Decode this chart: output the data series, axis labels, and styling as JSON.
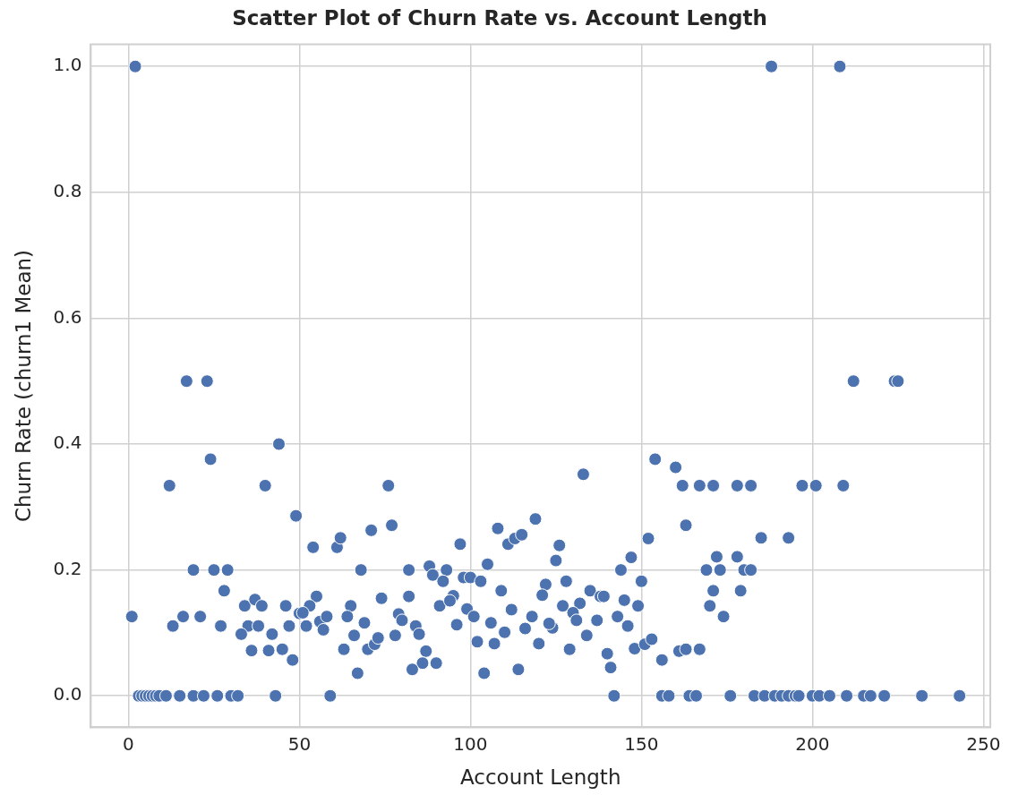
{
  "chart_data": {
    "type": "scatter",
    "title": "Scatter Plot of Churn Rate vs. Account Length",
    "xlabel": "Account Length",
    "ylabel": "Churn Rate (churn1 Mean)",
    "xlim": [
      -11,
      252
    ],
    "ylim": [
      -0.05,
      1.035
    ],
    "xticks": [
      0,
      50,
      100,
      150,
      200,
      250
    ],
    "yticks": [
      {
        "value": 0,
        "label": "0.0"
      },
      {
        "value": 0.2,
        "label": "0.2"
      },
      {
        "value": 0.4,
        "label": "0.4"
      },
      {
        "value": 0.6,
        "label": "0.6"
      },
      {
        "value": 0.8,
        "label": "0.8"
      },
      {
        "value": 1,
        "label": "1.0"
      }
    ],
    "grid": true,
    "legend": false,
    "marker": "circle",
    "series": [
      {
        "color": "#4c72b0",
        "x": [
          2,
          188,
          208,
          17,
          23,
          44,
          24,
          12,
          40,
          49,
          54,
          61,
          62,
          71,
          19,
          25,
          29,
          68,
          28,
          34,
          37,
          39,
          46,
          55,
          53,
          65,
          1,
          16,
          21,
          13,
          27,
          35,
          38,
          33,
          42,
          47,
          50,
          51,
          52,
          56,
          58,
          57,
          64,
          69,
          66,
          63,
          70,
          72,
          67,
          36,
          41,
          45,
          48,
          3,
          4,
          5,
          6,
          7,
          8,
          9,
          11,
          15,
          19,
          22,
          26,
          30,
          32,
          43,
          59,
          76,
          77,
          97,
          82,
          88,
          89,
          93,
          92,
          98,
          100,
          103,
          105,
          108,
          111,
          113,
          115,
          119,
          133,
          126,
          125,
          122,
          121,
          128,
          109,
          135,
          138,
          139,
          132,
          127,
          130,
          131,
          137,
          134,
          140,
          141,
          142,
          129,
          120,
          147,
          152,
          154,
          150,
          144,
          145,
          149,
          143,
          146,
          148,
          151,
          153,
          74,
          82,
          91,
          95,
          94,
          99,
          101,
          112,
          106,
          96,
          110,
          118,
          116,
          124,
          123,
          79,
          80,
          84,
          85,
          78,
          73,
          87,
          86,
          90,
          83,
          102,
          107,
          104,
          114,
          160,
          162,
          167,
          171,
          178,
          182,
          197,
          201,
          209,
          163,
          185,
          193,
          172,
          178,
          169,
          173,
          180,
          182,
          171,
          179,
          170,
          174,
          156,
          161,
          163,
          167,
          212,
          224,
          225,
          156,
          158,
          164,
          166,
          176,
          183,
          186,
          189,
          191,
          193,
          195,
          196,
          200,
          202,
          205,
          210,
          215,
          217,
          221,
          232,
          243
        ],
        "values": [
          1,
          1,
          1,
          0.5,
          0.5,
          0.4,
          0.376,
          0.334,
          0.334,
          0.286,
          0.236,
          0.236,
          0.251,
          0.263,
          0.2,
          0.2,
          0.2,
          0.2,
          0.167,
          0.143,
          0.153,
          0.143,
          0.143,
          0.158,
          0.143,
          0.143,
          0.126,
          0.126,
          0.126,
          0.111,
          0.111,
          0.111,
          0.111,
          0.098,
          0.098,
          0.111,
          0.131,
          0.132,
          0.111,
          0.118,
          0.126,
          0.105,
          0.126,
          0.116,
          0.096,
          0.074,
          0.074,
          0.082,
          0.036,
          0.072,
          0.072,
          0.074,
          0.057,
          0,
          0,
          0,
          0,
          0,
          0,
          0,
          0,
          0,
          0,
          0,
          0,
          0,
          0,
          0,
          0,
          0.334,
          0.271,
          0.241,
          0.2,
          0.206,
          0.192,
          0.2,
          0.182,
          0.188,
          0.188,
          0.182,
          0.209,
          0.266,
          0.241,
          0.25,
          0.256,
          0.281,
          0.352,
          0.239,
          0.215,
          0.177,
          0.16,
          0.182,
          0.167,
          0.167,
          0.158,
          0.158,
          0.147,
          0.143,
          0.132,
          0.12,
          0.12,
          0.096,
          0.067,
          0.045,
          0,
          0.074,
          0.083,
          0.22,
          0.25,
          0.376,
          0.182,
          0.2,
          0.152,
          0.143,
          0.126,
          0.111,
          0.075,
          0.082,
          0.09,
          0.155,
          0.158,
          0.143,
          0.159,
          0.151,
          0.138,
          0.126,
          0.137,
          0.116,
          0.113,
          0.101,
          0.126,
          0.107,
          0.108,
          0.115,
          0.13,
          0.12,
          0.111,
          0.098,
          0.096,
          0.092,
          0.071,
          0.052,
          0.052,
          0.042,
          0.086,
          0.083,
          0.036,
          0.042,
          0.363,
          0.334,
          0.334,
          0.334,
          0.334,
          0.334,
          0.334,
          0.334,
          0.334,
          0.271,
          0.251,
          0.251,
          0.221,
          0.221,
          0.2,
          0.2,
          0.2,
          0.2,
          0.167,
          0.167,
          0.143,
          0.126,
          0.057,
          0.071,
          0.074,
          0.074,
          0.5,
          0.5,
          0.5,
          0,
          0,
          0,
          0,
          0,
          0,
          0,
          0,
          0,
          0,
          0,
          0,
          0,
          0,
          0,
          0,
          0,
          0,
          0,
          0,
          0
        ]
      }
    ]
  }
}
